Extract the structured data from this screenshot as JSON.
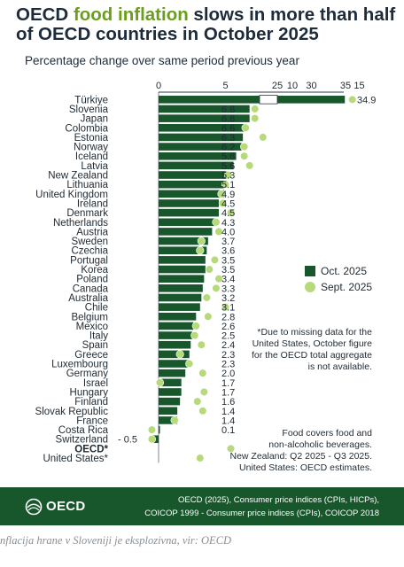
{
  "header": {
    "title_part1": "OECD ",
    "title_highlight": "food inflation",
    "title_part2": " slows in more than half of OECD countries in October 2025",
    "subtitle": "Percentage change over same period previous year"
  },
  "chart_data": {
    "type": "bar",
    "orientation": "horizontal",
    "categories": [
      "Türkiye",
      "Slovenia",
      "Japan",
      "Colombia",
      "Estonia",
      "Norway",
      "Iceland",
      "Latvia",
      "New Zealand",
      "Lithuania",
      "United Kingdom",
      "Ireland",
      "Denmark",
      "Netherlands",
      "Austria",
      "Sweden",
      "Czechia",
      "Portugal",
      "Korea",
      "Poland",
      "Canada",
      "Australia",
      "Chile",
      "Belgium",
      "Mexico",
      "Italy",
      "Spain",
      "Greece",
      "Luxembourg",
      "Germany",
      "Israel",
      "Hungary",
      "Finland",
      "Slovak Republic",
      "France",
      "Costa Rica",
      "Switzerland",
      "OECD*",
      "United States*"
    ],
    "bold_categories": [
      "OECD*"
    ],
    "series": [
      {
        "name": "Oct. 2025",
        "color": "#17572b",
        "values": [
          34.9,
          6.8,
          6.8,
          6.6,
          6.3,
          6.2,
          5.8,
          5.6,
          5.3,
          5.1,
          4.9,
          4.5,
          4.5,
          4.3,
          4.0,
          3.7,
          3.6,
          3.5,
          3.5,
          3.4,
          3.3,
          3.2,
          3.1,
          2.8,
          2.6,
          2.5,
          2.4,
          2.3,
          2.3,
          2.0,
          1.7,
          1.7,
          1.6,
          1.4,
          1.4,
          0.1,
          -0.5,
          null,
          null
        ]
      },
      {
        "name": "Sept. 2025",
        "color": "#b6d97a",
        "values": [
          36.0,
          7.2,
          7.2,
          6.5,
          7.8,
          6.4,
          6.4,
          6.8,
          5.2,
          5.0,
          4.7,
          4.8,
          5.4,
          4.3,
          4.5,
          3.2,
          3.1,
          4.2,
          3.8,
          4.5,
          4.3,
          3.6,
          5.0,
          3.7,
          2.8,
          2.7,
          3.2,
          1.6,
          2.3,
          3.3,
          0.1,
          3.4,
          2.9,
          3.3,
          1.2,
          -0.5,
          -0.5,
          5.4,
          3.1
        ]
      }
    ],
    "value_labels": [
      "34.9",
      "6.8",
      "6.8",
      "6.6",
      "6.3",
      "6.2",
      "5.8",
      "5.6",
      "5.3",
      "5.1",
      "4.9",
      "4.5",
      "4.5",
      "4.3",
      "4.0",
      "3.7",
      "3.6",
      "3.5",
      "3.5",
      "3.4",
      "3.3",
      "3.2",
      "3.1",
      "2.8",
      "2.6",
      "2.5",
      "2.4",
      "2.3",
      "2.3",
      "2.0",
      "1.7",
      "1.7",
      "1.6",
      "1.4",
      "1.4",
      "0.1",
      "- 0.5",
      "",
      ""
    ],
    "axis": {
      "lower_segment": {
        "min": 0,
        "max": 15,
        "ticks": [
          "0",
          "5",
          "10",
          "15"
        ]
      },
      "upper_segment": {
        "min": 25,
        "max": 35,
        "ticks": [
          "25",
          "30",
          "35"
        ]
      },
      "broken": true
    },
    "legend_position": "right",
    "notes": [
      {
        "id": "note-missing-data",
        "lines": [
          "*Due to missing data for the",
          "United States, October figure",
          "for the OECD total aggregate",
          "is not available."
        ]
      },
      {
        "id": "note-coverage",
        "lines": [
          "Food covers food and",
          "non-alcoholic beverages.",
          "New Zealand: Q2 2025 - Q3 2025.",
          "United States: OECD estimates."
        ]
      }
    ]
  },
  "footer": {
    "logo_text": "OECD",
    "source_line1": "OECD (2025), Consumer price indices (CPIs, HICPs),",
    "source_line2": "COICOP 1999 - Consumer price indices (CPIs), COICOP 2018",
    "background": "#17572b"
  },
  "caption": "nflacija hrane v Sloveniji je eksplozivna, vir: OECD"
}
